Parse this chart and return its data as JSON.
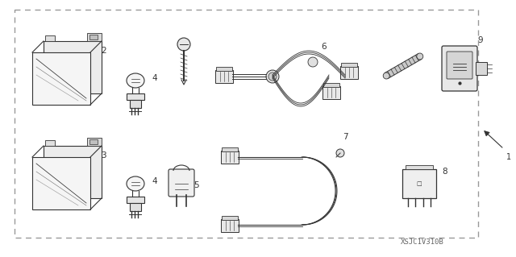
{
  "background_color": "#ffffff",
  "border_color": "#999999",
  "text_color": "#333333",
  "part_code": "XSJC1V310B",
  "fig_w": 6.4,
  "fig_h": 3.19,
  "dpi": 100
}
